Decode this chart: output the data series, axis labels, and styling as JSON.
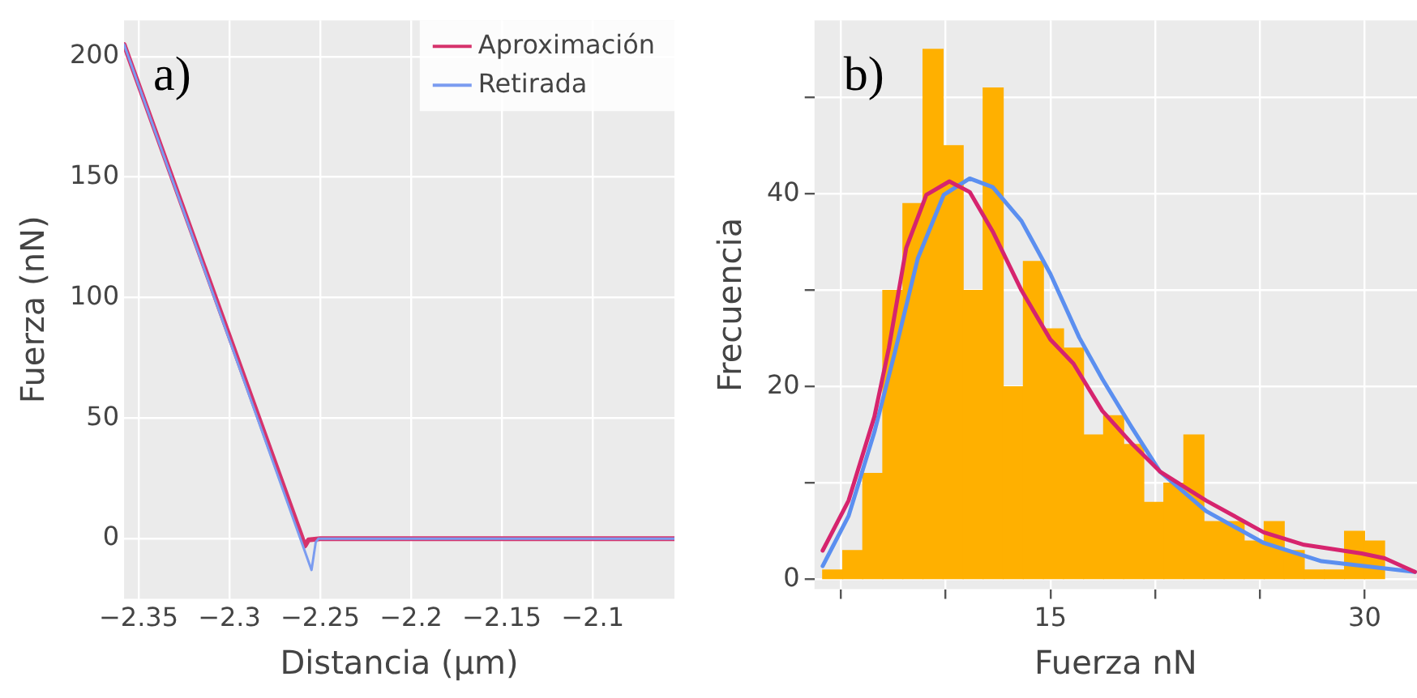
{
  "chart_data": [
    {
      "type": "line",
      "xlabel": "Distancia (µm)",
      "ylabel": "Fuerza (nN)",
      "annotations": [
        "a)"
      ],
      "legend": "top right",
      "grid": true,
      "marker": "none",
      "line_style": "solid",
      "xlim": [
        -2.358,
        -2.055
      ],
      "ylim": [
        -25,
        215
      ],
      "xticks": [
        {
          "value": -2.35,
          "label": "−2.35"
        },
        {
          "value": -2.3,
          "label": "−2.3"
        },
        {
          "value": -2.25,
          "label": "−2.25"
        },
        {
          "value": -2.2,
          "label": "−2.2"
        },
        {
          "value": -2.15,
          "label": "−2.15"
        },
        {
          "value": -2.1,
          "label": "−2.1"
        }
      ],
      "yticks": [
        0,
        50,
        100,
        150,
        200
      ],
      "series": [
        {
          "name": "Aproximación",
          "color": "#d6336c",
          "x": [
            -2.358,
            -2.2584,
            -2.2565,
            -2.25,
            -2.055
          ],
          "values": [
            205,
            -3,
            -0.5,
            0,
            0
          ]
        },
        {
          "name": "Retirada",
          "color": "#7b9cf0",
          "x": [
            -2.358,
            -2.2548,
            -2.2525,
            -2.251,
            -2.055
          ],
          "values": [
            205,
            -13,
            -1.5,
            0,
            0
          ]
        }
      ]
    },
    {
      "type": "histogram",
      "xlabel": "Fuerza nN",
      "ylabel": "Frecuencia",
      "annotations": [
        "b)"
      ],
      "grid": true,
      "color": "#ffb000",
      "marker": "none",
      "xlim": [
        3.74,
        32.5
      ],
      "ylim": [
        -1,
        58
      ],
      "xticks": [
        {
          "value": 5,
          "label": null
        },
        {
          "value": 10,
          "label": null
        },
        15,
        {
          "value": 20,
          "label": null
        },
        {
          "value": 25,
          "label": null
        },
        30
      ],
      "yticks": [
        0,
        {
          "value": 10,
          "label": null
        },
        20,
        {
          "value": 30,
          "label": null
        },
        40,
        {
          "value": 50,
          "label": null
        }
      ],
      "bins": [
        4.13,
        5.09,
        6.05,
        7.0,
        7.96,
        8.92,
        9.88,
        10.84,
        11.79,
        12.75,
        13.71,
        14.67,
        15.63,
        16.58,
        17.54,
        18.5,
        19.46,
        20.42,
        21.37,
        22.33,
        23.29,
        24.25,
        25.21,
        26.16,
        27.12,
        28.08,
        29.04,
        30.0,
        30.95
      ],
      "values": [
        1,
        3,
        11,
        30,
        39,
        55,
        45,
        30,
        51,
        20,
        33,
        26,
        24,
        15,
        17,
        14,
        8,
        10,
        15,
        6,
        6,
        4,
        6,
        3,
        1,
        1,
        5,
        4
      ],
      "series": [
        {
          "type": "line",
          "color": "#d6246e",
          "x": [
            4.13,
            5.37,
            6.6,
            7.29,
            8.12,
            9.08,
            10.18,
            11.15,
            12.25,
            13.62,
            15,
            16.1,
            17.48,
            18.85,
            20.23,
            22.43,
            25.18,
            27.11,
            29.86,
            30.96,
            32.4
          ],
          "values": [
            3.0,
            8.2,
            16.9,
            24,
            34.4,
            39.9,
            41.3,
            40.2,
            36.1,
            30,
            24.9,
            22.4,
            17.5,
            14.2,
            11.2,
            8.2,
            4.9,
            3.6,
            2.7,
            2.2,
            0.8
          ]
        },
        {
          "type": "line",
          "color": "#5b8ff0",
          "x": [
            4.13,
            5.37,
            6.6,
            7.57,
            8.67,
            9.91,
            11.15,
            12.25,
            13.62,
            15,
            16.38,
            17.48,
            18.85,
            20.23,
            22.43,
            25.18,
            27.94,
            32.4
          ],
          "values": [
            1.4,
            6.6,
            15.3,
            23.5,
            33.3,
            39.9,
            41.6,
            40.7,
            37.2,
            31.7,
            25.1,
            20.8,
            15.9,
            11.2,
            7.1,
            3.8,
            1.9,
            0.8
          ]
        }
      ]
    }
  ]
}
